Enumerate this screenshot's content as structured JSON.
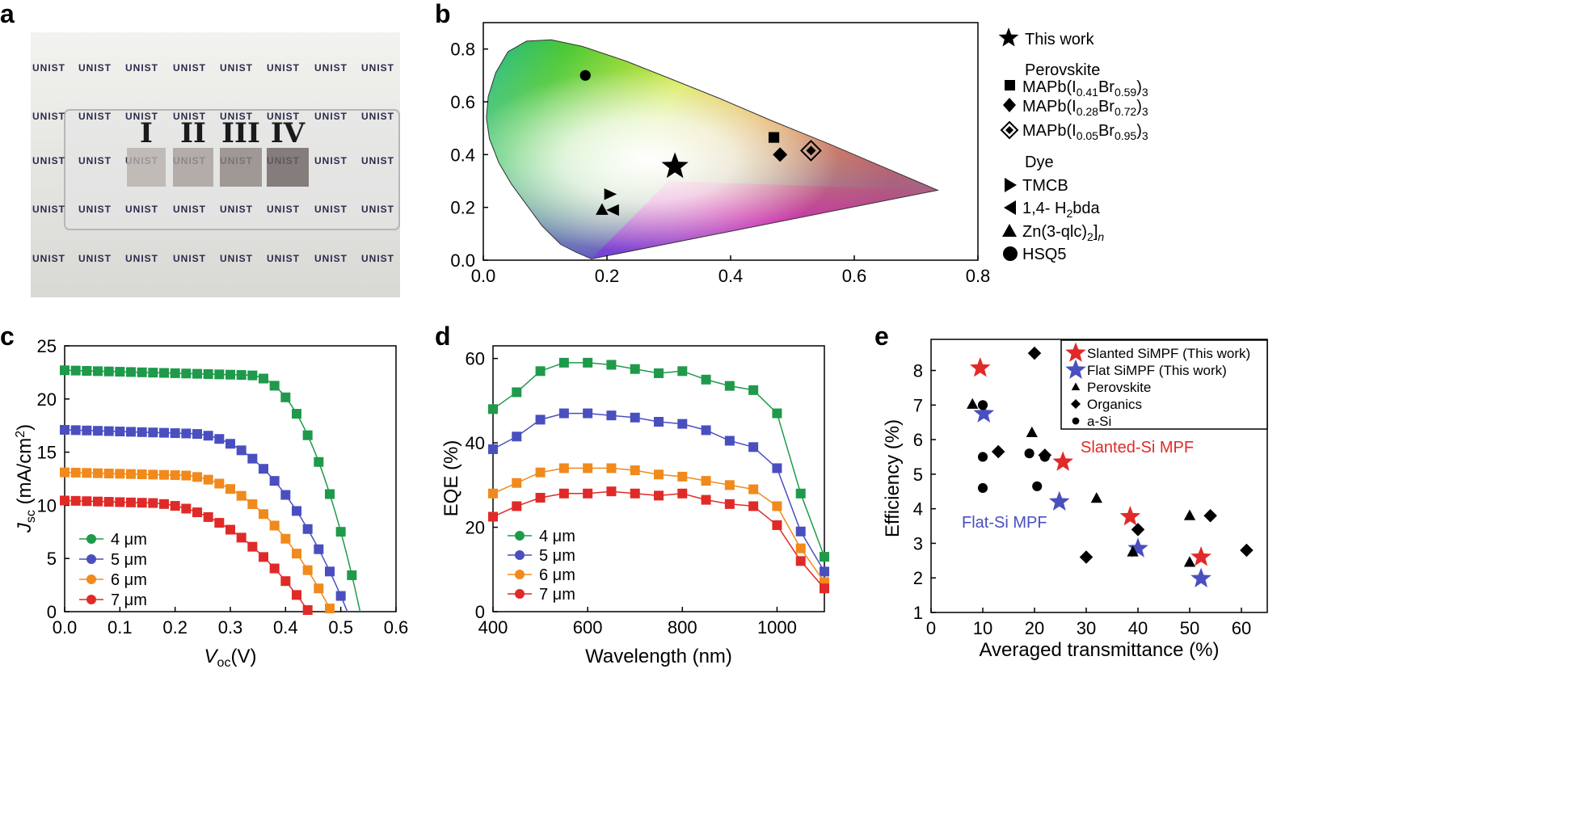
{
  "panels": {
    "a": {
      "label": "a",
      "watermark": "UNIST",
      "sample_labels": [
        "I",
        "II",
        "III",
        "IV"
      ],
      "sample_colors": [
        "#b8b0ac",
        "#a89e99",
        "#8e8480",
        "#6c6360"
      ]
    },
    "b": {
      "label": "b"
    },
    "c": {
      "label": "c"
    },
    "d": {
      "label": "d"
    },
    "e": {
      "label": "e"
    }
  },
  "legend_b": {
    "this_work": "This work",
    "perovskite_header": "Perovskite",
    "dye_header": "Dye",
    "perovskite_items": [
      "MAPb(I0.41Br0.59)3",
      "MAPb(I0.28Br0.72)3",
      "MAPb(I0.05Br0.95)3"
    ],
    "dye_items": [
      "TMCB",
      "1,4- H2bda",
      "Zn(3-qlc)2]n",
      "HSQ5"
    ]
  },
  "chart_data": [
    {
      "panel": "b",
      "type": "scatter",
      "title": "",
      "xlim": [
        0,
        0.8
      ],
      "ylim": [
        0,
        0.9
      ],
      "xticks": [
        "0.0",
        "0.2",
        "0.4",
        "0.6",
        "0.8"
      ],
      "yticks": [
        "0.0",
        "0.2",
        "0.4",
        "0.6",
        "0.8"
      ],
      "points": [
        {
          "name": "This work",
          "marker": "star",
          "x": 0.31,
          "y": 0.355
        },
        {
          "name": "MAPb(I0.41Br0.59)3",
          "marker": "square",
          "x": 0.47,
          "y": 0.465
        },
        {
          "name": "MAPb(I0.28Br0.72)3",
          "marker": "diamond",
          "x": 0.48,
          "y": 0.4
        },
        {
          "name": "MAPb(I0.05Br0.95)3",
          "marker": "diamond-open",
          "x": 0.53,
          "y": 0.415
        },
        {
          "name": "TMCB",
          "marker": "tri-right",
          "x": 0.205,
          "y": 0.25
        },
        {
          "name": "1,4- H2bda",
          "marker": "tri-left",
          "x": 0.21,
          "y": 0.19
        },
        {
          "name": "Zn(3-qlc)2]n",
          "marker": "tri-up",
          "x": 0.192,
          "y": 0.19
        },
        {
          "name": "HSQ5",
          "marker": "circle",
          "x": 0.165,
          "y": 0.7
        }
      ]
    },
    {
      "panel": "c",
      "type": "line",
      "xlabel": "Voc(V)",
      "ylabel": "Jsc (mA/cm2)",
      "xlim": [
        0,
        0.6
      ],
      "ylim": [
        0,
        25
      ],
      "xticks": [
        "0.0",
        "0.1",
        "0.2",
        "0.3",
        "0.4",
        "0.5",
        "0.6"
      ],
      "yticks": [
        "0",
        "5",
        "10",
        "15",
        "20",
        "25"
      ],
      "series": [
        {
          "name": "4 μm",
          "color": "#1e9a4a",
          "jsc": 22.7,
          "voc": 0.535,
          "knee": 0.33,
          "end_x": 0.525
        },
        {
          "name": "5 μm",
          "color": "#4a4fbf",
          "jsc": 17.1,
          "voc": 0.512,
          "knee": 0.22,
          "end_x": 0.507
        },
        {
          "name": "6 μm",
          "color": "#f08a1c",
          "jsc": 13.1,
          "voc": 0.483,
          "knee": 0.2,
          "end_x": 0.48
        },
        {
          "name": "7 μm",
          "color": "#e02a28",
          "jsc": 10.45,
          "voc": 0.442,
          "knee": 0.14,
          "end_x": 0.44
        }
      ]
    },
    {
      "panel": "d",
      "type": "line",
      "xlabel": "Wavelength (nm)",
      "ylabel": "EQE (%)",
      "xlim": [
        400,
        1100
      ],
      "ylim": [
        0,
        63
      ],
      "xticks": [
        "400",
        "600",
        "800",
        "1000"
      ],
      "yticks": [
        "0",
        "20",
        "40",
        "60"
      ],
      "x": [
        400,
        450,
        500,
        550,
        600,
        650,
        700,
        750,
        800,
        850,
        900,
        950,
        1000,
        1050,
        1100
      ],
      "series": [
        {
          "name": "4 μm",
          "color": "#1e9a4a",
          "values": [
            48,
            52,
            57,
            59,
            59,
            58.5,
            57.5,
            56.5,
            57,
            55,
            53.5,
            52.5,
            47,
            28,
            13
          ]
        },
        {
          "name": "5 μm",
          "color": "#4a4fbf",
          "values": [
            38.5,
            41.5,
            45.5,
            47,
            47,
            46.5,
            46,
            45,
            44.5,
            43,
            40.5,
            39,
            34,
            19,
            9.5
          ]
        },
        {
          "name": "6 μm",
          "color": "#f08a1c",
          "values": [
            28,
            30.5,
            33,
            34,
            34,
            34,
            33.5,
            32.5,
            32,
            31,
            30,
            29,
            25,
            15,
            7
          ]
        },
        {
          "name": "7 μm",
          "color": "#e02a28",
          "values": [
            22.5,
            25,
            27,
            28,
            28,
            28.5,
            28,
            27.5,
            28,
            26.5,
            25.5,
            25,
            20.5,
            12,
            5.5
          ]
        }
      ]
    },
    {
      "panel": "e",
      "type": "scatter",
      "xlabel": "Averaged transmittance (%)",
      "ylabel": "Efficiency (%)",
      "xlim": [
        0,
        65
      ],
      "ylim": [
        1,
        8.9
      ],
      "xticks": [
        "0",
        "10",
        "20",
        "30",
        "40",
        "50",
        "60"
      ],
      "yticks": [
        "1",
        "2",
        "3",
        "4",
        "5",
        "6",
        "7",
        "8"
      ],
      "annotations": [
        "Slanted-Si MPF",
        "Flat-Si MPF"
      ],
      "series": [
        {
          "name": "Slanted SiMPF (This work)",
          "marker": "star",
          "color": "#e02a28",
          "points": [
            [
              9.5,
              8.07
            ],
            [
              25.5,
              5.35
            ],
            [
              38.5,
              3.77
            ],
            [
              52.2,
              2.6
            ]
          ]
        },
        {
          "name": "Flat SiMPF (This work)",
          "marker": "star",
          "color": "#4a4fbf",
          "points": [
            [
              10.2,
              6.75
            ],
            [
              24.8,
              4.2
            ],
            [
              40,
              2.85
            ],
            [
              52.2,
              1.98
            ]
          ]
        },
        {
          "name": "Perovskite",
          "marker": "triangle",
          "color": "#000000",
          "points": [
            [
              8,
              7.02
            ],
            [
              19.5,
              6.2
            ],
            [
              32,
              4.3
            ],
            [
              39,
              2.75
            ],
            [
              50,
              3.8
            ],
            [
              50,
              2.45
            ]
          ]
        },
        {
          "name": "Organics",
          "marker": "diamond",
          "color": "#000000",
          "points": [
            [
              20,
              8.5
            ],
            [
              13,
              5.65
            ],
            [
              22,
              5.55
            ],
            [
              30,
              2.6
            ],
            [
              40,
              3.4
            ],
            [
              54,
              3.8
            ],
            [
              61,
              2.8
            ]
          ]
        },
        {
          "name": "a-Si",
          "marker": "circle",
          "color": "#000000",
          "points": [
            [
              10,
              7.0
            ],
            [
              10,
              5.5
            ],
            [
              10,
              4.6
            ],
            [
              19,
              5.6
            ],
            [
              22,
              5.5
            ],
            [
              20.5,
              4.65
            ]
          ]
        }
      ]
    }
  ]
}
